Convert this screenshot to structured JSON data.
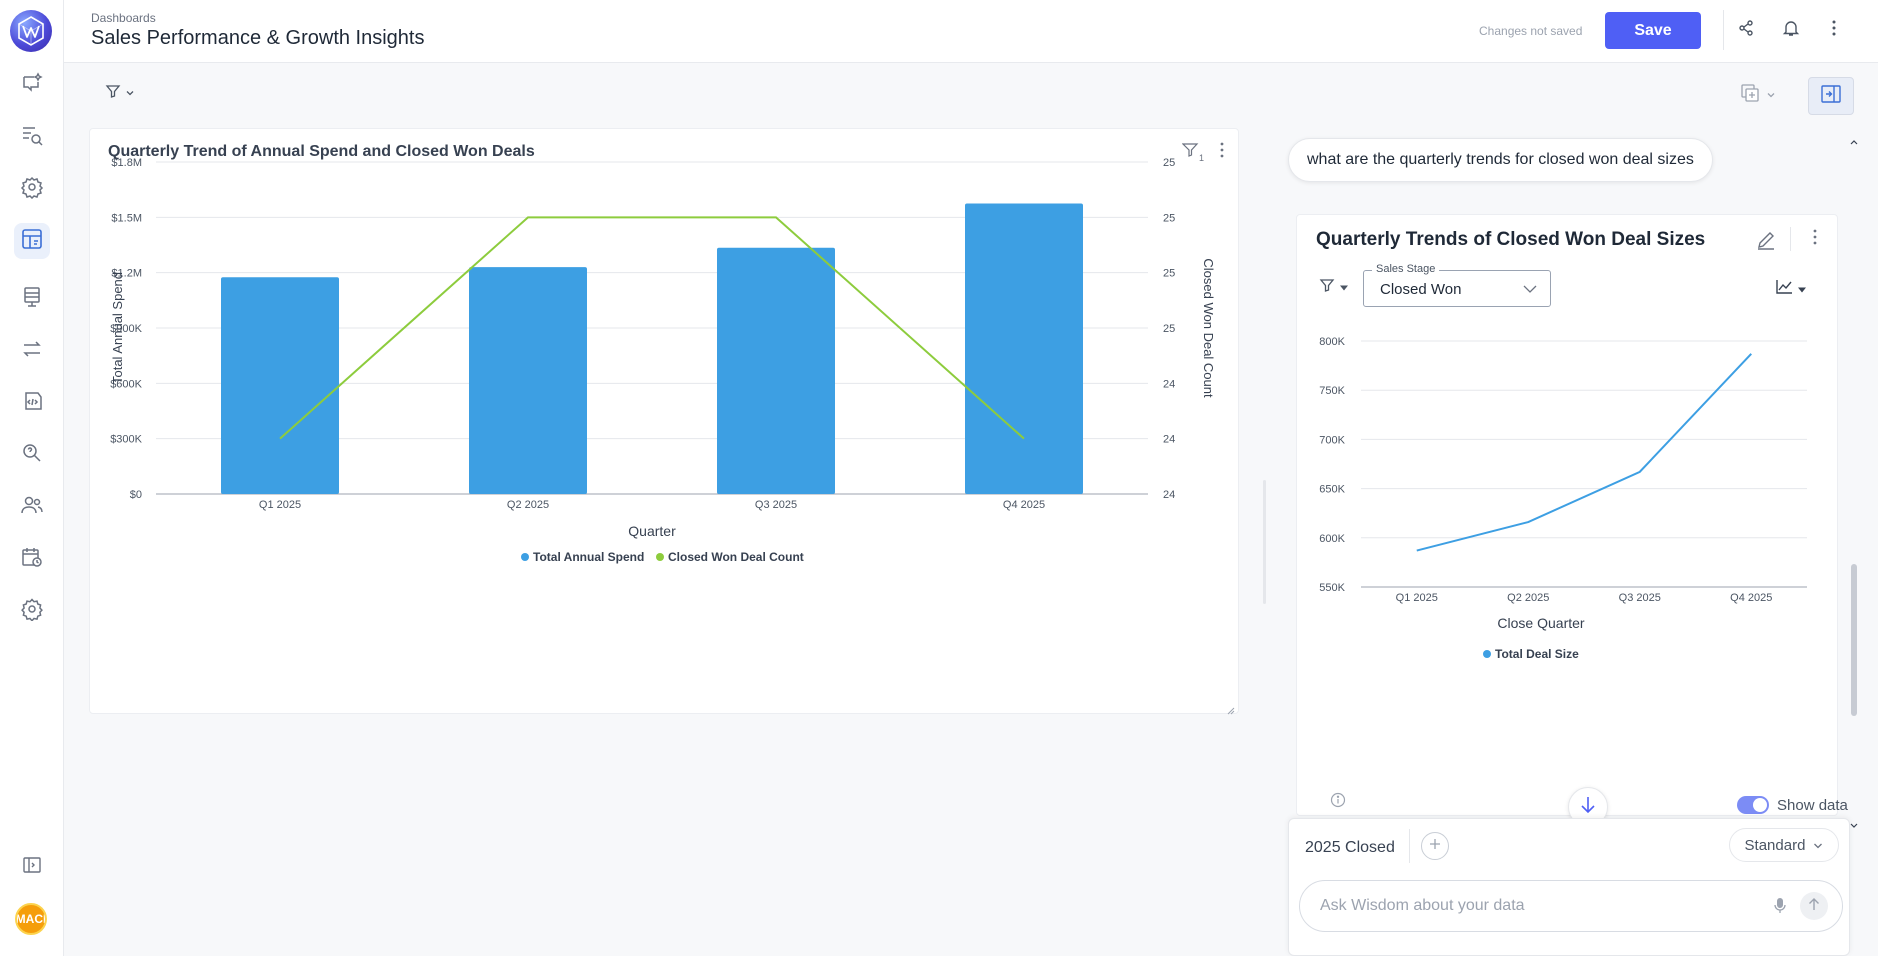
{
  "app": {
    "breadcrumb": "Dashboards",
    "title": "Sales Performance & Growth Insights",
    "status": "Changes not saved",
    "save_label": "Save",
    "accent": "#4f5ff5",
    "avatar_text": "MACI",
    "rail_icons": [
      "chat-sparkle-icon",
      "search-list-icon",
      "settings-cog-icon",
      "dashboard-icon",
      "data-table-icon",
      "transfer-icon",
      "code-icon",
      "question-search-icon",
      "users-icon",
      "calendar-clock-icon",
      "gear-icon"
    ],
    "header_icons": [
      "share-icon",
      "bell-icon",
      "more-vertical-icon"
    ]
  },
  "main_chart": {
    "title": "Quarterly Trend of Annual Spend and Closed Won Deals",
    "filter_count": "1",
    "chart_data": {
      "type": "bar",
      "categories": [
        "Q1 2025",
        "Q2 2025",
        "Q3 2025",
        "Q4 2025"
      ],
      "series": [
        {
          "name": "Total Annual Spend",
          "type": "bar",
          "axis": "left",
          "color": "#3d9fe3",
          "values": [
            1175000,
            1230000,
            1335000,
            1575000
          ]
        },
        {
          "name": "Closed Won Deal Count",
          "type": "line",
          "axis": "right",
          "color": "#8dcc3d",
          "values": [
            24,
            25,
            25,
            24
          ]
        }
      ],
      "xlabel": "Quarter",
      "ylabel": "Total Annual Spend",
      "y2label": "Closed Won Deal Count",
      "ylim": [
        0,
        1800000
      ],
      "yticks": [
        "$0",
        "$300K",
        "$600K",
        "$900K",
        "$1.2M",
        "$1.5M",
        "$1.8M"
      ],
      "y2ticks": [
        "24",
        "24",
        "24",
        "25",
        "25",
        "25",
        "25"
      ],
      "grid": true,
      "legend": "bottom-center"
    }
  },
  "panel": {
    "question": "what are the quarterly trends for closed won deal sizes",
    "card_title": "Quarterly Trends of Closed Won Deal Sizes",
    "filter_label": "Sales Stage",
    "filter_value": "Closed Won",
    "show_data_label": "Show data",
    "show_data_on": true,
    "chart_data": {
      "type": "line",
      "x": [
        "Q1 2025",
        "Q2 2025",
        "Q3 2025",
        "Q4 2025"
      ],
      "series": [
        {
          "name": "Total Deal Size",
          "color": "#3d9fe3",
          "values": [
            587000,
            616000,
            667000,
            787000
          ]
        }
      ],
      "xlabel": "Close Quarter",
      "ylabel": "",
      "ylim": [
        550000,
        800000
      ],
      "yticks": [
        "550K",
        "600K",
        "650K",
        "700K",
        "750K",
        "800K"
      ],
      "grid": true,
      "legend": "bottom-center"
    }
  },
  "composer": {
    "context_chip": "2025 Closed",
    "mode": "Standard",
    "placeholder": "Ask Wisdom about your data"
  }
}
